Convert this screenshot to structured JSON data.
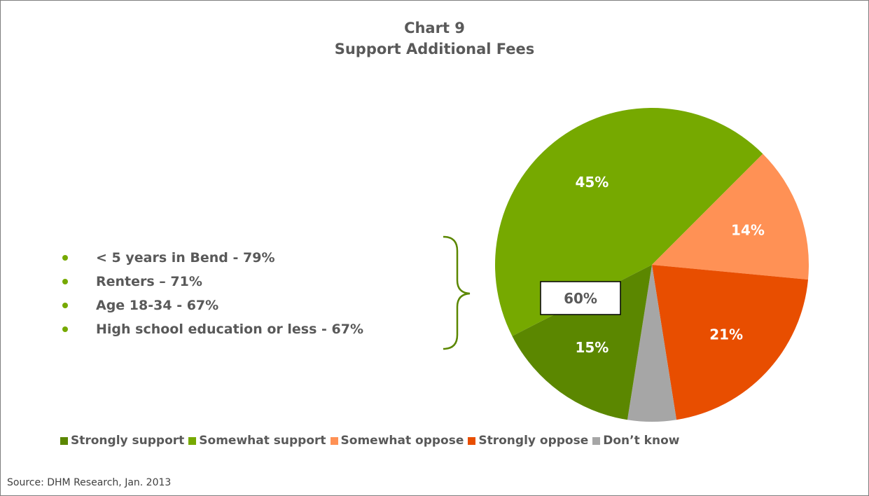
{
  "chart_data": {
    "type": "pie",
    "title_line1": "Chart 9",
    "title_line2": "Support Additional Fees",
    "slices": [
      {
        "name": "Somewhat support",
        "value": 45,
        "label": "45%",
        "color": "#76a900"
      },
      {
        "name": "Somewhat oppose",
        "value": 14,
        "label": "14%",
        "color": "#ff9155"
      },
      {
        "name": "Strongly oppose",
        "value": 21,
        "label": "21%",
        "color": "#e84e00"
      },
      {
        "name": "Don’t know",
        "value": 5,
        "label": "",
        "color": "#a6a6a6"
      },
      {
        "name": "Strongly support",
        "value": 15,
        "label": "15%",
        "color": "#5b8700"
      }
    ],
    "legend": [
      {
        "label": "Strongly support",
        "color": "#5b8700"
      },
      {
        "label": "Somewhat support",
        "color": "#76a900"
      },
      {
        "label": "Somewhat oppose",
        "color": "#ff9155"
      },
      {
        "label": "Strongly oppose",
        "color": "#e84e00"
      },
      {
        "label": "Don’t know",
        "color": "#a6a6a6"
      }
    ],
    "legend_position": "bottom",
    "total_support_label": "60%"
  },
  "callout": {
    "items": [
      "< 5 years in Bend - 79%",
      "Renters – 71%",
      "Age 18-34 - 67%",
      "High school education or less - 67%"
    ],
    "bracket_color": "#5b8700"
  },
  "source": "Source: DHM Research, Jan. 2013"
}
